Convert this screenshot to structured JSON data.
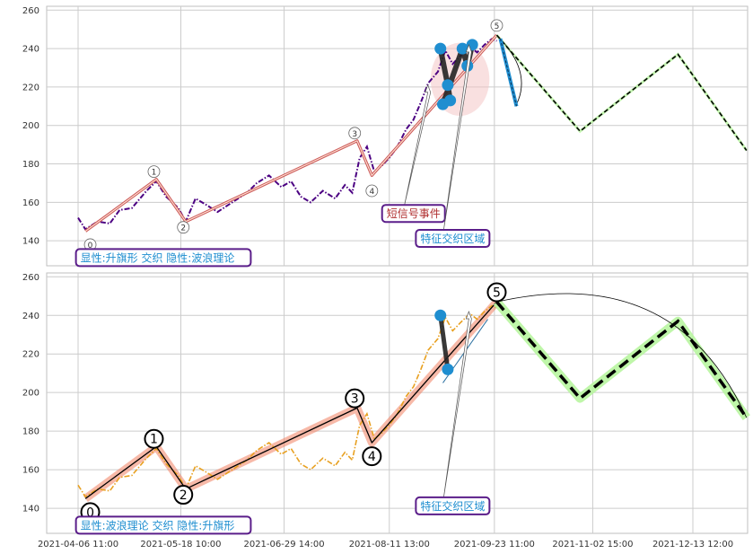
{
  "chart_data": [
    {
      "type": "line",
      "panel": "top",
      "y_ticks": [
        140,
        160,
        180,
        200,
        220,
        240,
        260
      ],
      "ylim": [
        127,
        262
      ],
      "grid": true,
      "colors": {
        "price": "#4b0082",
        "wave": "#cd5c5c",
        "forecast": "#000000",
        "forecast_glow": "#b8f5a0",
        "marker": "#1f8ed0",
        "zone": "#f4c2c2"
      },
      "price_series": [
        {
          "x": "2021-04-06 11:00",
          "y": 152
        },
        {
          "x": "2021-04-09 10:00",
          "y": 146
        },
        {
          "x": "2021-04-14 10:00",
          "y": 150
        },
        {
          "x": "2021-04-19 10:00",
          "y": 149
        },
        {
          "x": "2021-04-23 10:00",
          "y": 156
        },
        {
          "x": "2021-04-28 10:00",
          "y": 157
        },
        {
          "x": "2021-05-04 10:00",
          "y": 166
        },
        {
          "x": "2021-05-08 10:00",
          "y": 171
        },
        {
          "x": "2021-05-12 10:00",
          "y": 163
        },
        {
          "x": "2021-05-17 10:00",
          "y": 157
        },
        {
          "x": "2021-05-20 10:00",
          "y": 150
        },
        {
          "x": "2021-05-24 10:00",
          "y": 162
        },
        {
          "x": "2021-05-28 10:00",
          "y": 159
        },
        {
          "x": "2021-06-02 10:00",
          "y": 155
        },
        {
          "x": "2021-06-08 10:00",
          "y": 160
        },
        {
          "x": "2021-06-14 10:00",
          "y": 165
        },
        {
          "x": "2021-06-18 10:00",
          "y": 170
        },
        {
          "x": "2021-06-23 10:00",
          "y": 174
        },
        {
          "x": "2021-06-28 10:00",
          "y": 168
        },
        {
          "x": "2021-07-02 10:00",
          "y": 171
        },
        {
          "x": "2021-07-06 10:00",
          "y": 163
        },
        {
          "x": "2021-07-10 10:00",
          "y": 160
        },
        {
          "x": "2021-07-15 10:00",
          "y": 166
        },
        {
          "x": "2021-07-20 10:00",
          "y": 162
        },
        {
          "x": "2021-07-24 10:00",
          "y": 169
        },
        {
          "x": "2021-07-27 10:00",
          "y": 165
        },
        {
          "x": "2021-07-30 10:00",
          "y": 183
        },
        {
          "x": "2021-08-02 10:00",
          "y": 189
        },
        {
          "x": "2021-08-05 10:00",
          "y": 176
        },
        {
          "x": "2021-08-08 10:00",
          "y": 179
        },
        {
          "x": "2021-08-11 10:00",
          "y": 183
        },
        {
          "x": "2021-08-14 10:00",
          "y": 188
        },
        {
          "x": "2021-08-18 10:00",
          "y": 198
        },
        {
          "x": "2021-08-21 10:00",
          "y": 203
        },
        {
          "x": "2021-08-24 10:00",
          "y": 212
        },
        {
          "x": "2021-08-27 10:00",
          "y": 222
        },
        {
          "x": "2021-08-31 10:00",
          "y": 228
        },
        {
          "x": "2021-09-03 10:00",
          "y": 239
        },
        {
          "x": "2021-09-06 10:00",
          "y": 232
        },
        {
          "x": "2021-09-09 10:00",
          "y": 236
        },
        {
          "x": "2021-09-13 10:00",
          "y": 241
        },
        {
          "x": "2021-09-16 10:00",
          "y": 238
        },
        {
          "x": "2021-09-19 10:00",
          "y": 242
        },
        {
          "x": "2021-09-22 10:00",
          "y": 245
        },
        {
          "x": "2021-09-24 10:00",
          "y": 244
        }
      ],
      "wave_points": [
        {
          "label": "0",
          "x": "2021-04-09 11:00",
          "y": 145
        },
        {
          "label": "1",
          "x": "2021-05-08 10:00",
          "y": 172
        },
        {
          "label": "2",
          "x": "2021-05-20 10:00",
          "y": 150
        },
        {
          "label": "3",
          "x": "2021-07-29 10:00",
          "y": 192
        },
        {
          "label": "4",
          "x": "2021-08-04 10:00",
          "y": 174
        },
        {
          "label": "5",
          "x": "2021-09-24 10:00",
          "y": 247
        }
      ],
      "wave_labels": [
        {
          "text": "0",
          "x": "2021-04-11 10:00",
          "y": 138
        },
        {
          "text": "1",
          "x": "2021-05-07 10:00",
          "y": 176
        },
        {
          "text": "2",
          "x": "2021-05-19 10:00",
          "y": 147
        },
        {
          "text": "3",
          "x": "2021-07-28 10:00",
          "y": 196
        },
        {
          "text": "4",
          "x": "2021-08-04 10:00",
          "y": 166
        },
        {
          "text": "5",
          "x": "2021-09-24 10:00",
          "y": 252
        }
      ],
      "forecast": [
        {
          "x": "2021-09-24 10:00",
          "y": 247
        },
        {
          "x": "2021-10-28 10:00",
          "y": 197
        },
        {
          "x": "2021-12-07 10:00",
          "y": 237
        },
        {
          "x": "2022-01-04 10:00",
          "y": 187
        }
      ],
      "forecast_glow": false,
      "markers": [
        {
          "x": "2021-09-01 10:00",
          "y": 240
        },
        {
          "x": "2021-09-04 10:00",
          "y": 221
        },
        {
          "x": "2021-09-05 10:00",
          "y": 213
        },
        {
          "x": "2021-09-02 10:00",
          "y": 211
        },
        {
          "x": "2021-09-10 10:00",
          "y": 240
        },
        {
          "x": "2021-09-12 10:00",
          "y": 231
        },
        {
          "x": "2021-09-14 10:00",
          "y": 242
        }
      ],
      "zone": {
        "x_center": "2021-09-09 10:00",
        "y_center": 224,
        "rx_days": 12,
        "ry": 19
      },
      "annotations": [
        {
          "text": "短信号事件",
          "x": "2021-08-21 10:00",
          "y": 154,
          "color": "#b03030"
        },
        {
          "text": "特征交织区域",
          "x": "2021-09-06 10:00",
          "y": 141,
          "color": "#1f8ed0"
        },
        {
          "text": "显性:升旗形 交织 隐性:波浪理论",
          "x": "2021-04-07 10:00",
          "y": 131,
          "color": "#1f8ed0"
        }
      ]
    },
    {
      "type": "line",
      "panel": "bottom",
      "y_ticks": [
        140,
        160,
        180,
        200,
        220,
        240,
        260
      ],
      "ylim": [
        127,
        262
      ],
      "grid": true,
      "colors": {
        "price": "#e8a020",
        "wave": "#f08060",
        "forecast": "#000000",
        "forecast_glow": "#b8f5a0",
        "marker": "#1f8ed0"
      },
      "x_ticks": [
        "2021-04-06 11:00",
        "2021-05-18 10:00",
        "2021-06-29 14:00",
        "2021-08-11 13:00",
        "2021-09-23 11:00",
        "2021-11-02 15:00",
        "2021-12-13 12:00"
      ],
      "price_series": [
        {
          "x": "2021-04-06 11:00",
          "y": 152
        },
        {
          "x": "2021-04-09 10:00",
          "y": 146
        },
        {
          "x": "2021-04-14 10:00",
          "y": 150
        },
        {
          "x": "2021-04-19 10:00",
          "y": 149
        },
        {
          "x": "2021-04-23 10:00",
          "y": 156
        },
        {
          "x": "2021-04-28 10:00",
          "y": 157
        },
        {
          "x": "2021-05-04 10:00",
          "y": 166
        },
        {
          "x": "2021-05-08 10:00",
          "y": 171
        },
        {
          "x": "2021-05-12 10:00",
          "y": 163
        },
        {
          "x": "2021-05-17 10:00",
          "y": 157
        },
        {
          "x": "2021-05-20 10:00",
          "y": 150
        },
        {
          "x": "2021-05-24 10:00",
          "y": 162
        },
        {
          "x": "2021-05-28 10:00",
          "y": 159
        },
        {
          "x": "2021-06-02 10:00",
          "y": 155
        },
        {
          "x": "2021-06-08 10:00",
          "y": 160
        },
        {
          "x": "2021-06-14 10:00",
          "y": 165
        },
        {
          "x": "2021-06-18 10:00",
          "y": 170
        },
        {
          "x": "2021-06-23 10:00",
          "y": 174
        },
        {
          "x": "2021-06-28 10:00",
          "y": 168
        },
        {
          "x": "2021-07-02 10:00",
          "y": 171
        },
        {
          "x": "2021-07-06 10:00",
          "y": 163
        },
        {
          "x": "2021-07-10 10:00",
          "y": 160
        },
        {
          "x": "2021-07-15 10:00",
          "y": 166
        },
        {
          "x": "2021-07-20 10:00",
          "y": 162
        },
        {
          "x": "2021-07-24 10:00",
          "y": 169
        },
        {
          "x": "2021-07-27 10:00",
          "y": 165
        },
        {
          "x": "2021-07-30 10:00",
          "y": 183
        },
        {
          "x": "2021-08-02 10:00",
          "y": 189
        },
        {
          "x": "2021-08-05 10:00",
          "y": 176
        },
        {
          "x": "2021-08-08 10:00",
          "y": 179
        },
        {
          "x": "2021-08-11 10:00",
          "y": 183
        },
        {
          "x": "2021-08-14 10:00",
          "y": 188
        },
        {
          "x": "2021-08-18 10:00",
          "y": 198
        },
        {
          "x": "2021-08-21 10:00",
          "y": 203
        },
        {
          "x": "2021-08-24 10:00",
          "y": 212
        },
        {
          "x": "2021-08-27 10:00",
          "y": 222
        },
        {
          "x": "2021-08-31 10:00",
          "y": 228
        },
        {
          "x": "2021-09-03 10:00",
          "y": 239
        },
        {
          "x": "2021-09-06 10:00",
          "y": 232
        },
        {
          "x": "2021-09-09 10:00",
          "y": 236
        },
        {
          "x": "2021-09-13 10:00",
          "y": 241
        },
        {
          "x": "2021-09-16 10:00",
          "y": 238
        },
        {
          "x": "2021-09-19 10:00",
          "y": 242
        },
        {
          "x": "2021-09-22 10:00",
          "y": 245
        },
        {
          "x": "2021-09-24 10:00",
          "y": 244
        }
      ],
      "wave_points": [
        {
          "label": "0",
          "x": "2021-04-09 11:00",
          "y": 145
        },
        {
          "label": "1",
          "x": "2021-05-08 10:00",
          "y": 172
        },
        {
          "label": "2",
          "x": "2021-05-20 10:00",
          "y": 150
        },
        {
          "label": "3",
          "x": "2021-07-29 10:00",
          "y": 192
        },
        {
          "label": "4",
          "x": "2021-08-04 10:00",
          "y": 174
        },
        {
          "label": "5",
          "x": "2021-09-24 10:00",
          "y": 247
        }
      ],
      "wave_labels": [
        {
          "text": "0",
          "x": "2021-04-11 10:00",
          "y": 138
        },
        {
          "text": "1",
          "x": "2021-05-07 10:00",
          "y": 176
        },
        {
          "text": "2",
          "x": "2021-05-19 10:00",
          "y": 147
        },
        {
          "text": "3",
          "x": "2021-07-28 10:00",
          "y": 197
        },
        {
          "text": "4",
          "x": "2021-08-04 10:00",
          "y": 167
        },
        {
          "text": "5",
          "x": "2021-09-24 10:00",
          "y": 252
        }
      ],
      "forecast": [
        {
          "x": "2021-09-24 10:00",
          "y": 247
        },
        {
          "x": "2021-10-28 10:00",
          "y": 197
        },
        {
          "x": "2021-12-07 10:00",
          "y": 237
        },
        {
          "x": "2022-01-04 10:00",
          "y": 187
        }
      ],
      "forecast_glow": true,
      "markers": [
        {
          "x": "2021-09-01 10:00",
          "y": 240
        },
        {
          "x": "2021-09-04 10:00",
          "y": 212
        }
      ],
      "annotations": [
        {
          "text": "特征交织区域",
          "x": "2021-09-06 10:00",
          "y": 141,
          "color": "#1f8ed0"
        },
        {
          "text": "显性:波浪理论 交织 隐性:升旗形",
          "x": "2021-04-07 10:00",
          "y": 131,
          "color": "#1f8ed0"
        }
      ]
    }
  ]
}
